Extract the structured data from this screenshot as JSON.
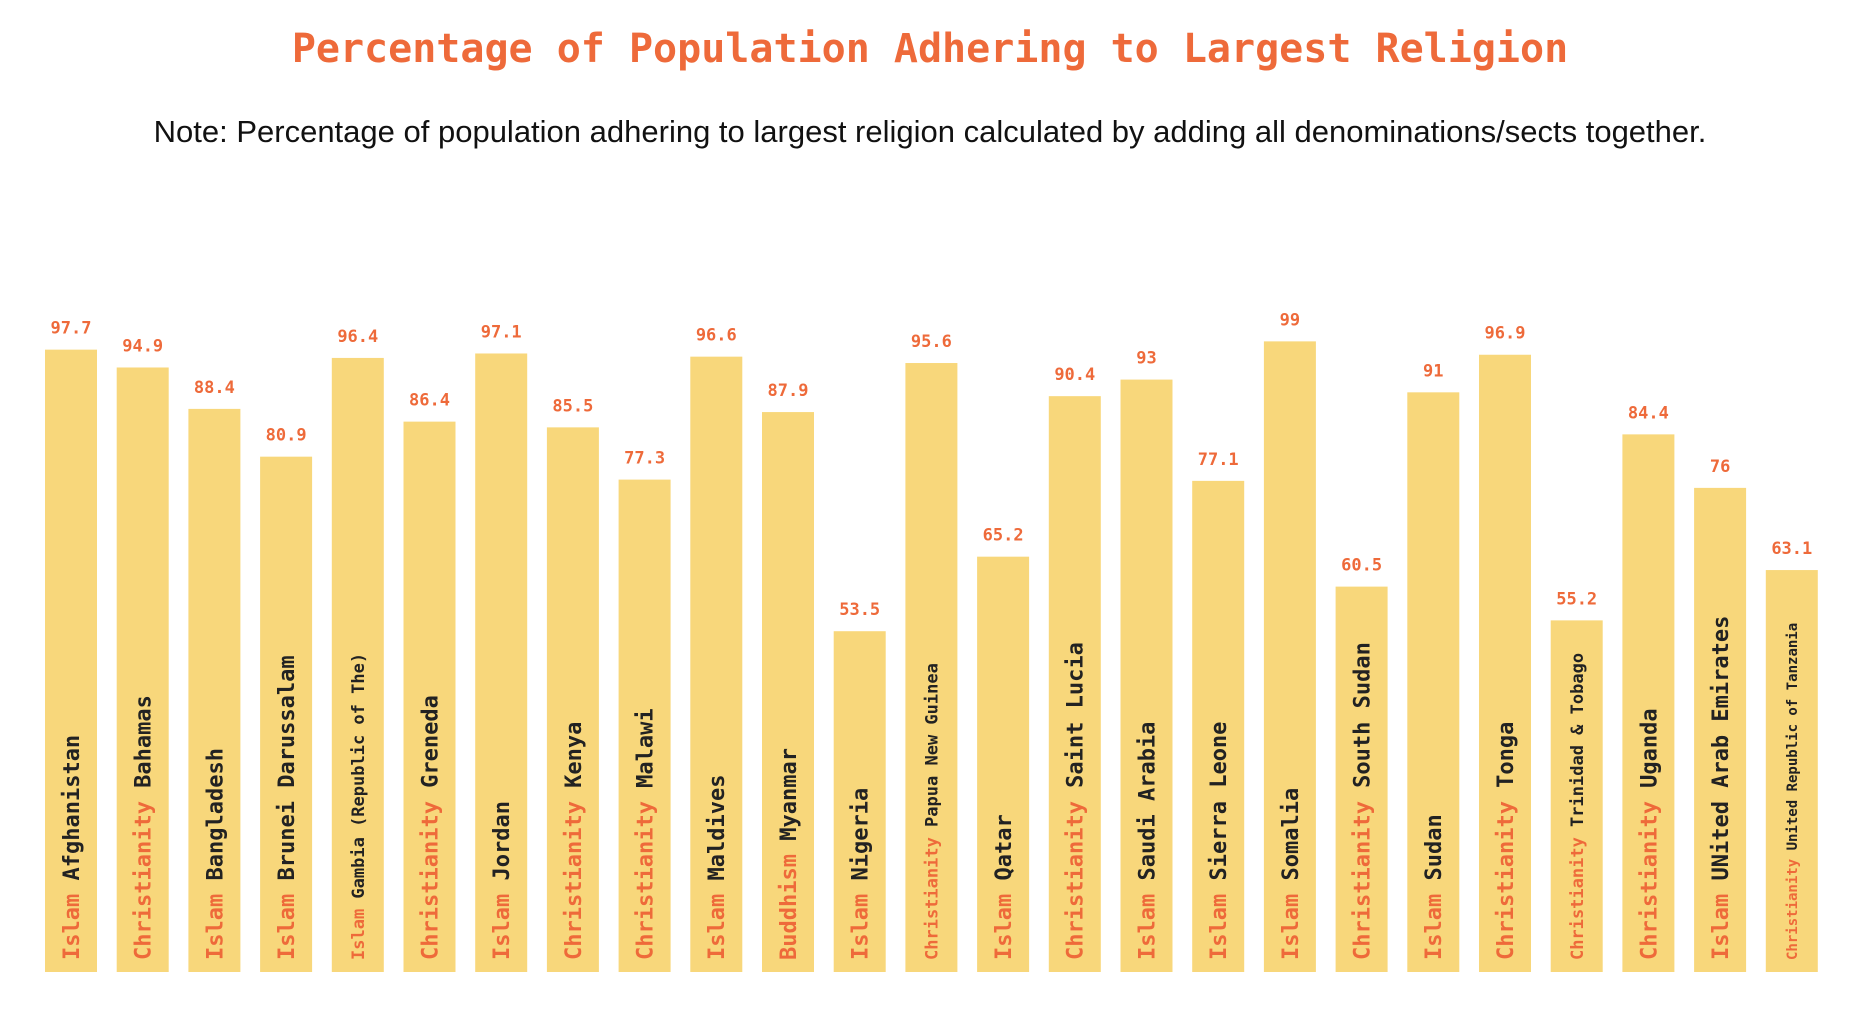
{
  "colors": {
    "bar": "#f8d77b",
    "religion_text": "#ee6a3a",
    "country_text": "#222222",
    "value_text": "#ee6a3a",
    "title": "#ee6a3a"
  },
  "chart_data": {
    "type": "bar",
    "title": "Percentage of Population Adhering to Largest Religion",
    "subtitle": "Note: Percentage of population adhering to largest religion calculated by adding all denominations/sects together.",
    "xlabel": "",
    "ylabel": "",
    "ylim": [
      0,
      100
    ],
    "grid": false,
    "legend": "none",
    "categories": [
      "Afghanistan",
      "Bahamas",
      "Bangladesh",
      "Brunei Darussalam",
      "Gambia (Republic of The)",
      "Greneda",
      "Jordan",
      "Kenya",
      "Malawi",
      "Maldives",
      "Myanmar",
      "Nigeria",
      "Papua New Guinea",
      "Qatar",
      "Saint Lucia",
      "Saudi Arabia",
      "Sierra Leone",
      "Somalia",
      "South Sudan",
      "Sudan",
      "Tonga",
      "Trinidad & Tobago",
      "Uganda",
      "UNited Arab Emirates",
      "United Republic of Tanzania"
    ],
    "religions": [
      "Islam",
      "Christianity",
      "Islam",
      "Islam",
      "Islam",
      "Christianity",
      "Islam",
      "Christianity",
      "Christianity",
      "Islam",
      "Buddhism",
      "Islam",
      "Christianity",
      "Islam",
      "Christianity",
      "Islam",
      "Islam",
      "Islam",
      "Christianity",
      "Islam",
      "Christianity",
      "Christianity",
      "Christianity",
      "Islam",
      "Christianity"
    ],
    "values": [
      97.7,
      94.9,
      88.4,
      80.9,
      96.4,
      86.4,
      97.1,
      85.5,
      77.3,
      96.6,
      87.9,
      53.5,
      95.6,
      65.2,
      90.4,
      93,
      77.1,
      99,
      60.5,
      91,
      96.9,
      55.2,
      84.4,
      76,
      63.1
    ],
    "value_labels": [
      "97.7",
      "94.9",
      "88.4",
      "80.9",
      "96.4",
      "86.4",
      "97.1",
      "85.5",
      "77.3",
      "96.6",
      "87.9",
      "53.5",
      "95.6",
      "65.2",
      "90.4",
      "93",
      "77.1",
      "99",
      "60.5",
      "91",
      "96.9",
      "55.2",
      "84.4",
      "76",
      "63.1"
    ]
  }
}
